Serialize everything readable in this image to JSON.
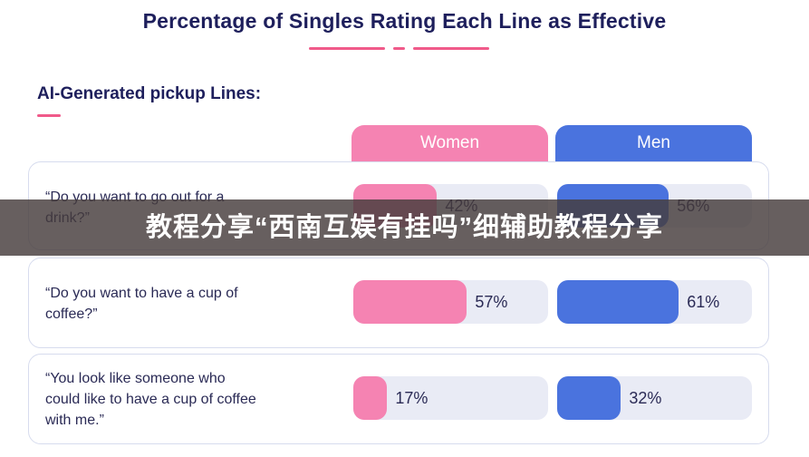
{
  "title": "Percentage of Singles Rating Each Line as Effective",
  "section_label": "AI-Generated pickup Lines:",
  "overlay_text": "教程分享“西南互娱有挂吗”细辅助教程分享",
  "colors": {
    "women": "#f583b2",
    "men": "#4a73de",
    "accent": "#f05a8a",
    "title": "#1e1f5c"
  },
  "chart_data": {
    "type": "bar",
    "title": "Percentage of Singles Rating Each Line as Effective",
    "categories": [
      "“Do you want to go out for a drink?”",
      "“Do you want to have a cup of coffee?”",
      "“You look like someone who could like to have a cup of coffee with me.”"
    ],
    "category_lines": [
      "“Do you want to go out for a\ndrink?”",
      "“Do you want to have a cup of\ncoffee?”",
      "“You look like someone who\ncould like to have a cup of coffee\nwith me.”"
    ],
    "series": [
      {
        "name": "Women",
        "values": [
          42,
          57,
          17
        ],
        "labels": [
          "42%",
          "57%",
          "17%"
        ]
      },
      {
        "name": "Men",
        "values": [
          56,
          61,
          32
        ],
        "labels": [
          "56%",
          "61%",
          "32%"
        ]
      }
    ],
    "ylim": [
      0,
      100
    ],
    "legend": "top (column headers)"
  }
}
